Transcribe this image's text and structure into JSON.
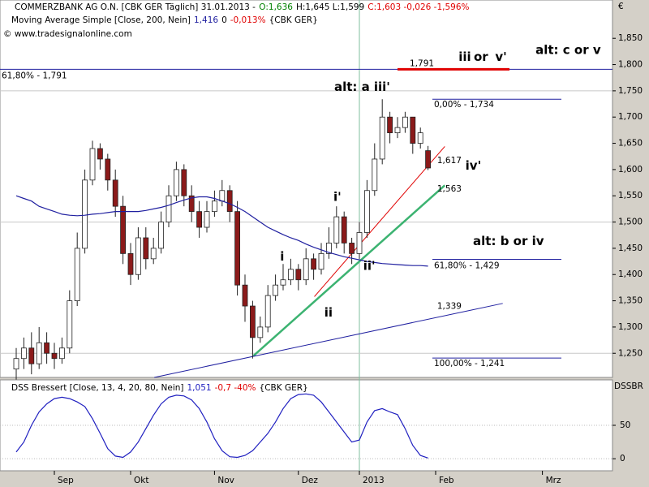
{
  "chart_data": [
    {
      "type": "candlestick",
      "header": [
        {
          "text": "COMMERZBANK AG O.N. [CBK GER  Täglich] 31.01.2013 -",
          "color": "#000000"
        },
        {
          "text": "O:1,636",
          "color": "#008000"
        },
        {
          "text": "H:1,645 L:1,599",
          "color": "#000000"
        },
        {
          "text": "C:1,603 -0,026 -1,596%",
          "color": "#e00000"
        }
      ],
      "copyright": "© www.tradesignalonline.com",
      "unit_label": "€",
      "open": [
        1.22,
        1.24,
        1.26,
        1.23,
        1.27,
        1.25,
        1.24,
        1.26,
        1.35,
        1.45,
        1.58,
        1.64,
        1.62,
        1.58,
        1.53,
        1.44,
        1.4,
        1.47,
        1.43,
        1.45,
        1.5,
        1.55,
        1.6,
        1.55,
        1.52,
        1.49,
        1.52,
        1.54,
        1.56,
        1.52,
        1.38,
        1.34,
        1.28,
        1.3,
        1.36,
        1.38,
        1.39,
        1.41,
        1.39,
        1.43,
        1.41,
        1.44,
        1.46,
        1.51,
        1.46,
        1.44,
        1.48,
        1.56,
        1.62,
        1.7,
        1.67,
        1.68,
        1.7,
        1.65,
        1.636,
        null,
        null,
        null,
        null,
        null,
        null,
        null,
        null,
        null,
        null,
        null,
        null,
        null,
        null,
        null,
        null,
        null,
        null,
        null,
        null,
        null,
        null,
        null
      ],
      "high": [
        1.26,
        1.28,
        1.29,
        1.3,
        1.29,
        1.27,
        1.28,
        1.37,
        1.48,
        1.6,
        1.655,
        1.65,
        1.63,
        1.6,
        1.55,
        1.46,
        1.49,
        1.49,
        1.47,
        1.52,
        1.57,
        1.615,
        1.61,
        1.57,
        1.54,
        1.54,
        1.56,
        1.58,
        1.57,
        1.54,
        1.4,
        1.35,
        1.32,
        1.38,
        1.4,
        1.42,
        1.43,
        1.42,
        1.45,
        1.44,
        1.46,
        1.49,
        1.53,
        1.52,
        1.47,
        1.5,
        1.58,
        1.65,
        1.734,
        1.71,
        1.7,
        1.71,
        1.7,
        1.68,
        1.645,
        null,
        null,
        null,
        null,
        null,
        null,
        null,
        null,
        null,
        null,
        null,
        null,
        null,
        null,
        null,
        null,
        null,
        null,
        null,
        null,
        null,
        null,
        null
      ],
      "low": [
        1.2,
        1.22,
        1.21,
        1.22,
        1.23,
        1.22,
        1.23,
        1.25,
        1.34,
        1.44,
        1.57,
        1.6,
        1.56,
        1.51,
        1.42,
        1.38,
        1.39,
        1.41,
        1.42,
        1.44,
        1.49,
        1.54,
        1.53,
        1.5,
        1.47,
        1.48,
        1.51,
        1.53,
        1.5,
        1.36,
        1.31,
        1.24,
        1.27,
        1.29,
        1.35,
        1.37,
        1.38,
        1.37,
        1.38,
        1.39,
        1.4,
        1.43,
        1.45,
        1.44,
        1.42,
        1.43,
        1.47,
        1.55,
        1.61,
        1.65,
        1.66,
        1.67,
        1.63,
        1.64,
        1.599,
        null,
        null,
        null,
        null,
        null,
        null,
        null,
        null,
        null,
        null,
        null,
        null,
        null,
        null,
        null,
        null,
        null,
        null,
        null,
        null,
        null,
        null,
        null
      ],
      "close": [
        1.24,
        1.26,
        1.23,
        1.27,
        1.25,
        1.24,
        1.26,
        1.35,
        1.45,
        1.58,
        1.64,
        1.62,
        1.58,
        1.53,
        1.44,
        1.4,
        1.47,
        1.43,
        1.45,
        1.5,
        1.55,
        1.6,
        1.55,
        1.52,
        1.49,
        1.52,
        1.54,
        1.56,
        1.52,
        1.38,
        1.34,
        1.28,
        1.3,
        1.36,
        1.38,
        1.39,
        1.41,
        1.39,
        1.43,
        1.41,
        1.44,
        1.46,
        1.51,
        1.46,
        1.44,
        1.48,
        1.56,
        1.62,
        1.7,
        1.67,
        1.68,
        1.7,
        1.65,
        1.67,
        1.603,
        null,
        null,
        null,
        null,
        null,
        null,
        null,
        null,
        null,
        null,
        null,
        null,
        null,
        null,
        null,
        null,
        null,
        null,
        null,
        null,
        null,
        null,
        null
      ],
      "candle_colors": {
        "up": "#ffffff",
        "down": "#8b1a1a",
        "outline": "#222222"
      },
      "series": [
        {
          "name": "Moving Average Simple [Close, 200, Nein]",
          "color": "#2020a0",
          "legend": [
            {
              "text": "1,416",
              "color": "#2020a0"
            },
            {
              "text": "0",
              "color": "#000000"
            },
            {
              "text": "-0,013%",
              "color": "#e00000"
            },
            {
              "text": "{CBK GER}",
              "color": "#000000"
            }
          ],
          "values": [
            1.55,
            1.545,
            1.54,
            1.53,
            1.525,
            1.52,
            1.515,
            1.513,
            1.512,
            1.513,
            1.515,
            1.516,
            1.518,
            1.52,
            1.52,
            1.52,
            1.52,
            1.522,
            1.525,
            1.528,
            1.532,
            1.537,
            1.542,
            1.546,
            1.548,
            1.548,
            1.545,
            1.54,
            1.535,
            1.528,
            1.52,
            1.51,
            1.5,
            1.49,
            1.483,
            1.476,
            1.47,
            1.465,
            1.458,
            1.452,
            1.447,
            1.442,
            1.438,
            1.434,
            1.431,
            1.428,
            1.425,
            1.423,
            1.421,
            1.42,
            1.419,
            1.418,
            1.417,
            1.417,
            1.416,
            null,
            null,
            null,
            null,
            null,
            null,
            null,
            null,
            null,
            null,
            null,
            null,
            null,
            null,
            null,
            null,
            null,
            null,
            null,
            null,
            null,
            null,
            null
          ]
        }
      ],
      "ylim": [
        1.204,
        1.923
      ],
      "yticks": [
        {
          "value": 1.25,
          "label": "1,250"
        },
        {
          "value": 1.3,
          "label": "1,300"
        },
        {
          "value": 1.35,
          "label": "1,350"
        },
        {
          "value": 1.4,
          "label": "1,400"
        },
        {
          "value": 1.45,
          "label": "1,450"
        },
        {
          "value": 1.5,
          "label": "1,500"
        },
        {
          "value": 1.55,
          "label": "1,550"
        },
        {
          "value": 1.6,
          "label": "1,600"
        },
        {
          "value": 1.65,
          "label": "1,650"
        },
        {
          "value": 1.7,
          "label": "1,700"
        },
        {
          "value": 1.75,
          "label": "1,750"
        },
        {
          "value": 1.8,
          "label": "1,800"
        },
        {
          "value": 1.85,
          "label": "1,850"
        }
      ],
      "levels": [
        {
          "value": 1.791,
          "label": "61,80% - 1,791",
          "style": "full"
        },
        {
          "value": 1.734,
          "label": "0,00% - 1,734",
          "style": "fib"
        },
        {
          "value": 1.429,
          "label": "61,80% - 1,429",
          "style": "fib"
        },
        {
          "value": 1.241,
          "label": "100,00% - 1,241",
          "style": "fib"
        }
      ],
      "marker": {
        "value": 1.791,
        "label": "1,791",
        "color": "#e00000"
      },
      "trendlines": [
        {
          "points": [
            [
              31.1,
              1.245
            ],
            [
              56.2,
              1.57
            ]
          ],
          "color": "#3cb371",
          "label": "1,563",
          "label_at": [
            55.2,
            1.563
          ]
        },
        {
          "points": [
            [
              39.1,
              1.358
            ],
            [
              56.2,
              1.644
            ]
          ],
          "color": "#e00000",
          "label": "1,617",
          "label_at": [
            55.2,
            1.617
          ]
        },
        {
          "points": [
            [
              18.1,
              1.204
            ],
            [
              63.8,
              1.345
            ]
          ],
          "color": "#2020a0",
          "label": "1,339",
          "label_at": [
            55.2,
            1.339
          ]
        }
      ],
      "annotations": [
        {
          "text": "i",
          "color": "#2e8b22",
          "at": [
            34.6,
            1.434
          ]
        },
        {
          "text": "ii",
          "color": "#2e8b22",
          "at": [
            40.4,
            1.327
          ]
        },
        {
          "text": "i'",
          "color": "#e00000",
          "at": [
            41.6,
            1.547
          ]
        },
        {
          "text": "ii'",
          "color": "#e00000",
          "at": [
            45.5,
            1.416
          ]
        },
        {
          "text": "alt: a",
          "color": "#2e8b22",
          "at": [
            41.7,
            1.757
          ]
        },
        {
          "text": "iii'",
          "color": "#e00000",
          "at": [
            46.9,
            1.757
          ]
        },
        {
          "text": "iv'",
          "color": "#e00000",
          "at": [
            58.9,
            1.607
          ]
        },
        {
          "text": "iii",
          "color": "#2e8b22",
          "at": [
            58,
            1.814
          ]
        },
        {
          "text": "or",
          "color": "#2e8b22",
          "at": [
            60,
            1.814
          ]
        },
        {
          "text": "v'",
          "color": "#e00000",
          "at": [
            62.8,
            1.814
          ]
        },
        {
          "text": "alt: c or v",
          "color": "#2e8b22",
          "at": [
            68.1,
            1.827
          ]
        },
        {
          "text": "alt: b or iv",
          "color": "#2e8b22",
          "at": [
            59.9,
            1.463
          ]
        }
      ]
    },
    {
      "type": "line",
      "categories": [
        null,
        null,
        null,
        null,
        null,
        "Sep",
        null,
        null,
        null,
        null,
        null,
        null,
        null,
        null,
        null,
        "Okt",
        null,
        null,
        null,
        null,
        null,
        null,
        null,
        null,
        null,
        null,
        "Nov",
        null,
        null,
        null,
        null,
        null,
        null,
        null,
        null,
        null,
        null,
        "Dez",
        null,
        null,
        null,
        null,
        null,
        null,
        null,
        "2013",
        null,
        null,
        null,
        null,
        null,
        null,
        null,
        null,
        null,
        "Feb",
        null,
        null,
        null,
        null,
        null,
        null,
        null,
        null,
        null,
        null,
        null,
        null,
        null,
        "Mrz",
        null,
        null,
        null,
        null,
        null,
        null,
        null,
        null
      ],
      "series": [
        {
          "name": "DSS Bressert [Close, 13, 4, 20, 80, Nein]",
          "color": "#2020c0",
          "legend": [
            {
              "text": "1,051",
              "color": "#2020c0"
            },
            {
              "text": "-0,7 -40%",
              "color": "#e00000"
            },
            {
              "text": "{CBK GER}",
              "color": "#000000"
            }
          ],
          "values": [
            10,
            25,
            50,
            70,
            82,
            90,
            92,
            90,
            85,
            78,
            60,
            38,
            15,
            4,
            2,
            10,
            25,
            45,
            65,
            82,
            92,
            95,
            94,
            88,
            75,
            55,
            30,
            12,
            3,
            2,
            5,
            12,
            25,
            38,
            55,
            75,
            90,
            96,
            97,
            95,
            85,
            70,
            55,
            40,
            25,
            28,
            55,
            72,
            75,
            70,
            66,
            45,
            20,
            5,
            1.051,
            null,
            null,
            null,
            null,
            null,
            null,
            null,
            null,
            null,
            null,
            null,
            null,
            null,
            null,
            null,
            null,
            null,
            null,
            null,
            null,
            null,
            null,
            null
          ]
        }
      ],
      "axis_label": "DSSBR",
      "ylim": [
        -18,
        118
      ],
      "yticks": [
        0,
        50
      ]
    }
  ]
}
